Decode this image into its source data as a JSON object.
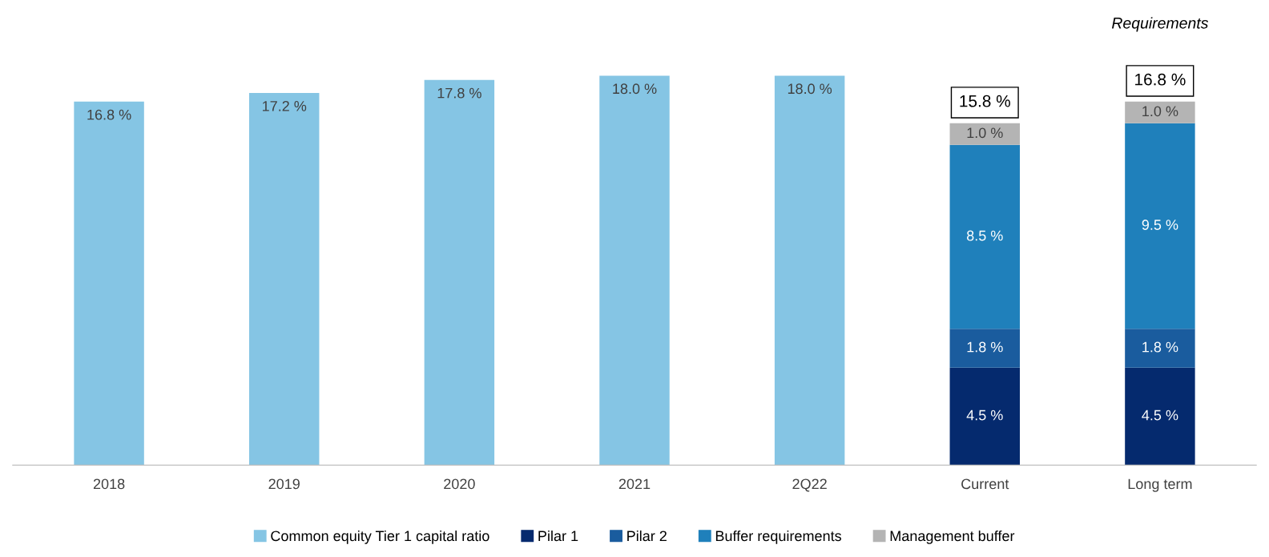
{
  "chart_data": {
    "type": "bar",
    "stacked": true,
    "categories": [
      "2018",
      "2019",
      "2020",
      "2021",
      "2Q22",
      "Current",
      "Long term"
    ],
    "series": [
      {
        "name": "Common equity Tier 1 capital ratio",
        "color": "#85c5e4",
        "values": [
          16.8,
          17.2,
          17.8,
          18.0,
          18.0,
          null,
          null
        ],
        "value_labels": [
          "16.8 %",
          "17.2 %",
          "17.8 %",
          "18.0 %",
          "18.0 %",
          null,
          null
        ]
      },
      {
        "name": "Pilar 1",
        "color": "#052a6e",
        "values": [
          null,
          null,
          null,
          null,
          null,
          4.5,
          4.5
        ],
        "value_labels": [
          null,
          null,
          null,
          null,
          null,
          "4.5 %",
          "4.5 %"
        ]
      },
      {
        "name": "Pilar 2",
        "color": "#1a5c9e",
        "values": [
          null,
          null,
          null,
          null,
          null,
          1.8,
          1.8
        ],
        "value_labels": [
          null,
          null,
          null,
          null,
          null,
          "1.8 %",
          "1.8 %"
        ]
      },
      {
        "name": "Buffer requirements",
        "color": "#1f80bb",
        "values": [
          null,
          null,
          null,
          null,
          null,
          8.5,
          9.5
        ],
        "value_labels": [
          null,
          null,
          null,
          null,
          null,
          "8.5 %",
          "9.5 %"
        ]
      },
      {
        "name": "Management buffer",
        "color": "#b4b4b4",
        "values": [
          null,
          null,
          null,
          null,
          null,
          1.0,
          1.0
        ],
        "value_labels": [
          null,
          null,
          null,
          null,
          null,
          "1.0 %",
          "1.0 %"
        ]
      }
    ],
    "totals": [
      null,
      null,
      null,
      null,
      null,
      "15.8 %",
      "16.8 %"
    ],
    "annotations": [
      "Requirements"
    ],
    "tick_labels": "x",
    "grid": false,
    "legend": "bottom"
  }
}
